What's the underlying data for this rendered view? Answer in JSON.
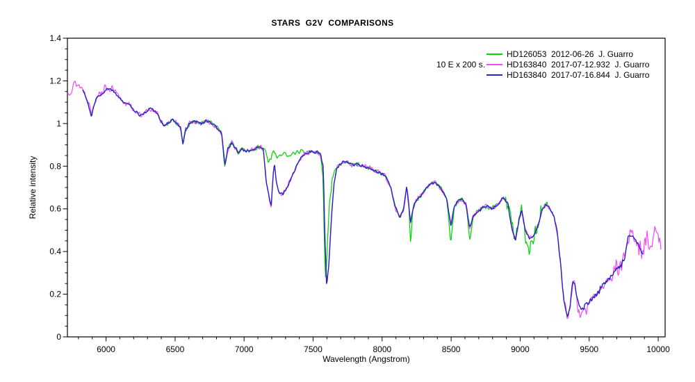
{
  "page": {
    "background": "#ffffff"
  },
  "chart_data": {
    "type": "line",
    "title": "STARS  G2V  COMPARISONS",
    "xlabel": "Wavelength (Angstrom)",
    "ylabel": "Relative intensity",
    "annotation": "10 E x 200 s.",
    "xlim": [
      5720,
      10050
    ],
    "ylim": [
      0,
      1.4
    ],
    "x_major_ticks": [
      6000,
      6500,
      7000,
      7500,
      8000,
      8500,
      9000,
      9500,
      10000
    ],
    "x_minor_step": 100,
    "y_major_ticks": [
      0,
      0.2,
      0.4,
      0.6,
      0.8,
      1,
      1.2,
      1.4
    ],
    "y_tick_labels": [
      "0",
      "0.2",
      "0.4",
      "0.6",
      "0.8",
      "1",
      "1.2",
      "1.4"
    ],
    "y_minor_step": 0.05,
    "grid": false,
    "legend_position": "top-right",
    "sample_step": 5,
    "axis_color": "#000000",
    "base_anchors": [
      [
        5750,
        1.17
      ],
      [
        5780,
        1.18
      ],
      [
        5805,
        1.17
      ],
      [
        5835,
        1.16
      ],
      [
        5868,
        1.1
      ],
      [
        5895,
        1.03
      ],
      [
        5915,
        1.09
      ],
      [
        5940,
        1.13
      ],
      [
        5970,
        1.14
      ],
      [
        6005,
        1.16
      ],
      [
        6045,
        1.16
      ],
      [
        6085,
        1.13
      ],
      [
        6125,
        1.1
      ],
      [
        6165,
        1.09
      ],
      [
        6205,
        1.06
      ],
      [
        6245,
        1.04
      ],
      [
        6285,
        1.05
      ],
      [
        6320,
        1.07
      ],
      [
        6355,
        1.06
      ],
      [
        6390,
        1.02
      ],
      [
        6420,
        0.99
      ],
      [
        6450,
        1.0
      ],
      [
        6480,
        1.02
      ],
      [
        6515,
        1.0
      ],
      [
        6540,
        0.98
      ],
      [
        6557,
        0.9
      ],
      [
        6575,
        0.97
      ],
      [
        6605,
        1.0
      ],
      [
        6645,
        1.01
      ],
      [
        6685,
        1.0
      ],
      [
        6725,
        1.01
      ],
      [
        6765,
        1.0
      ],
      [
        6805,
        0.98
      ],
      [
        6838,
        0.955
      ],
      [
        6860,
        0.8
      ],
      [
        6882,
        0.88
      ],
      [
        6908,
        0.91
      ],
      [
        6932,
        0.89
      ],
      [
        6958,
        0.86
      ],
      [
        6982,
        0.88
      ],
      [
        7012,
        0.87
      ],
      [
        7042,
        0.875
      ],
      [
        7078,
        0.885
      ],
      [
        7112,
        0.89
      ],
      [
        7140,
        0.88
      ],
      [
        7162,
        0.72
      ],
      [
        7185,
        0.64
      ],
      [
        7197,
        0.615
      ],
      [
        7214,
        0.79
      ],
      [
        7222,
        0.8
      ],
      [
        7234,
        0.72
      ],
      [
        7256,
        0.675
      ],
      [
        7280,
        0.665
      ],
      [
        7302,
        0.69
      ],
      [
        7332,
        0.73
      ],
      [
        7366,
        0.78
      ],
      [
        7400,
        0.83
      ],
      [
        7440,
        0.86
      ],
      [
        7480,
        0.87
      ],
      [
        7522,
        0.865
      ],
      [
        7552,
        0.86
      ],
      [
        7574,
        0.79
      ],
      [
        7586,
        0.45
      ],
      [
        7598,
        0.24
      ],
      [
        7613,
        0.33
      ],
      [
        7632,
        0.55
      ],
      [
        7652,
        0.72
      ],
      [
        7672,
        0.79
      ],
      [
        7702,
        0.815
      ],
      [
        7742,
        0.82
      ],
      [
        7782,
        0.805
      ],
      [
        7822,
        0.81
      ],
      [
        7862,
        0.8
      ],
      [
        7902,
        0.795
      ],
      [
        7942,
        0.78
      ],
      [
        7982,
        0.77
      ],
      [
        8022,
        0.755
      ],
      [
        8062,
        0.7
      ],
      [
        8100,
        0.6
      ],
      [
        8130,
        0.56
      ],
      [
        8155,
        0.6
      ],
      [
        8178,
        0.7
      ],
      [
        8193,
        0.62
      ],
      [
        8206,
        0.53
      ],
      [
        8222,
        0.6
      ],
      [
        8247,
        0.64
      ],
      [
        8277,
        0.66
      ],
      [
        8312,
        0.69
      ],
      [
        8352,
        0.72
      ],
      [
        8392,
        0.72
      ],
      [
        8432,
        0.69
      ],
      [
        8467,
        0.65
      ],
      [
        8498,
        0.52
      ],
      [
        8522,
        0.61
      ],
      [
        8552,
        0.64
      ],
      [
        8582,
        0.645
      ],
      [
        8608,
        0.62
      ],
      [
        8634,
        0.51
      ],
      [
        8662,
        0.57
      ],
      [
        8697,
        0.59
      ],
      [
        8742,
        0.615
      ],
      [
        8792,
        0.6
      ],
      [
        8842,
        0.62
      ],
      [
        8877,
        0.655
      ],
      [
        8912,
        0.62
      ],
      [
        8942,
        0.5
      ],
      [
        8965,
        0.45
      ],
      [
        8992,
        0.55
      ],
      [
        9012,
        0.59
      ],
      [
        9037,
        0.5
      ],
      [
        9067,
        0.46
      ],
      [
        9097,
        0.47
      ],
      [
        9127,
        0.52
      ],
      [
        9157,
        0.59
      ],
      [
        9187,
        0.62
      ],
      [
        9217,
        0.6
      ],
      [
        9247,
        0.56
      ],
      [
        9267,
        0.5
      ],
      [
        9292,
        0.35
      ],
      [
        9317,
        0.16
      ],
      [
        9342,
        0.1
      ],
      [
        9362,
        0.14
      ],
      [
        9380,
        0.25
      ],
      [
        9394,
        0.25
      ],
      [
        9407,
        0.2
      ],
      [
        9432,
        0.14
      ],
      [
        9462,
        0.135
      ],
      [
        9492,
        0.16
      ],
      [
        9522,
        0.18
      ],
      [
        9562,
        0.21
      ],
      [
        9602,
        0.24
      ],
      [
        9642,
        0.27
      ],
      [
        9682,
        0.3
      ],
      [
        9722,
        0.33
      ],
      [
        9757,
        0.37
      ],
      [
        9782,
        0.46
      ],
      [
        9802,
        0.48
      ],
      [
        9827,
        0.47
      ],
      [
        9852,
        0.44
      ],
      [
        9877,
        0.4
      ],
      [
        9895,
        0.385
      ]
    ],
    "series": [
      {
        "name": "HD126053  2012-06-26  J. Guarro",
        "color": "#00d800",
        "range": [
          6390,
          9200
        ],
        "seed": 7,
        "noise_base": 0.012,
        "noise_segments": [
          {
            "from": 8890,
            "to": 9205,
            "amp": 0.05,
            "spike_p": 0.1,
            "spike_mag": 0.1
          }
        ],
        "overrides": [
          {
            "from": 7141,
            "to": 7426,
            "points": [
              [
                7155,
                0.87
              ],
              [
                7175,
                0.82
              ],
              [
                7195,
                0.84
              ],
              [
                7215,
                0.87
              ],
              [
                7240,
                0.84
              ],
              [
                7265,
                0.85
              ],
              [
                7290,
                0.86
              ],
              [
                7320,
                0.84
              ],
              [
                7350,
                0.86
              ],
              [
                7385,
                0.865
              ],
              [
                7415,
                0.87
              ]
            ]
          },
          {
            "from": 7565,
            "to": 7668,
            "points": [
              [
                7572,
                0.74
              ],
              [
                7582,
                0.42
              ],
              [
                7592,
                0.24
              ],
              [
                7602,
                0.42
              ],
              [
                7618,
                0.62
              ],
              [
                7640,
                0.75
              ],
              [
                7662,
                0.79
              ]
            ]
          },
          {
            "from": 8200,
            "to": 8212,
            "points": [
              [
                8206,
                0.43
              ]
            ]
          },
          {
            "from": 8492,
            "to": 8505,
            "points": [
              [
                8498,
                0.44
              ]
            ]
          },
          {
            "from": 8628,
            "to": 8642,
            "points": [
              [
                8634,
                0.455
              ]
            ]
          },
          {
            "from": 9030,
            "to": 9110,
            "points": [
              [
                9040,
                0.47
              ],
              [
                9070,
                0.42
              ],
              [
                9100,
                0.47
              ]
            ]
          }
        ]
      },
      {
        "name": "HD163840  2017-07-12.932  J. Guarro",
        "color": "#f24ff2",
        "range": [
          5720,
          10020
        ],
        "seed": 13,
        "noise_base": 0.014,
        "noise_segments": [
          {
            "from": 5720,
            "to": 6080,
            "amp": 0.022
          },
          {
            "from": 9250,
            "to": 9660,
            "amp": 0.028
          },
          {
            "from": 9660,
            "to": 10020,
            "amp": 0.055
          }
        ],
        "overrides": [
          {
            "from": 5700,
            "to": 6050,
            "points": [
              [
                5720,
                1.14
              ],
              [
                5745,
                1.16
              ],
              [
                5775,
                1.19
              ],
              [
                5800,
                1.18
              ],
              [
                5835,
                1.16
              ],
              [
                5868,
                1.11
              ],
              [
                5895,
                1.05
              ],
              [
                5915,
                1.1
              ],
              [
                5940,
                1.14
              ],
              [
                5970,
                1.15
              ],
              [
                6005,
                1.17
              ],
              [
                6045,
                1.16
              ]
            ]
          },
          {
            "from": 9406,
            "to": 9505,
            "points": [
              [
                9420,
                0.12
              ],
              [
                9450,
                0.1
              ],
              [
                9480,
                0.13
              ]
            ]
          },
          {
            "from": 9896,
            "to": 10020,
            "points": [
              [
                9905,
                0.45
              ],
              [
                9930,
                0.46
              ],
              [
                9955,
                0.44
              ],
              [
                9980,
                0.48
              ],
              [
                10005,
                0.47
              ],
              [
                10020,
                0.45
              ]
            ]
          }
        ]
      },
      {
        "name": "HD163840  2017-07-16.844  J. Guarro",
        "color": "#2323c6",
        "range": [
          5832,
          9895
        ],
        "seed": 29,
        "noise_base": 0.008,
        "noise_segments": [
          {
            "from": 9280,
            "to": 9895,
            "amp": 0.016
          }
        ],
        "overrides": []
      }
    ]
  }
}
